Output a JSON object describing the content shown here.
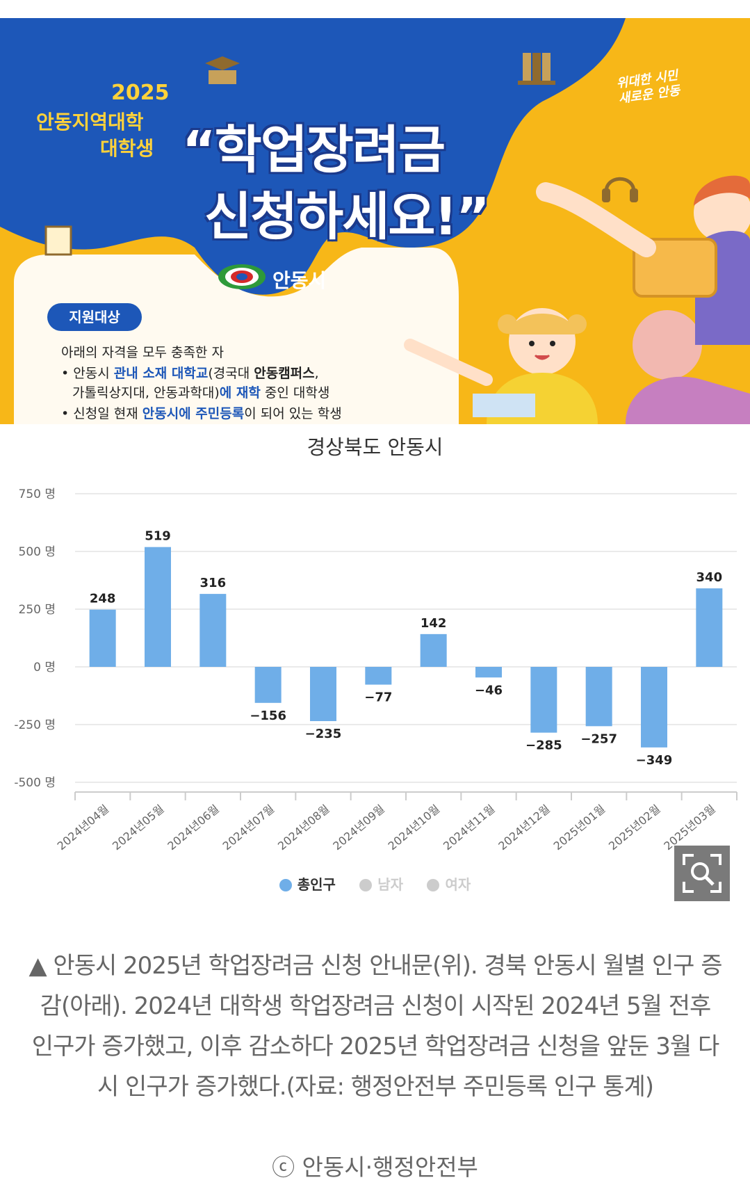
{
  "banner": {
    "year": "2025",
    "line1": "안동지역대학",
    "line2": "대학생",
    "headline1": "“학업장려금",
    "headline2": "신청하세요!”",
    "slogan1": "위대한 시민",
    "slogan2": "새로운 안동",
    "city_name": "안동시",
    "support_label": "지원대상",
    "info_intro": "아래의 자격을 모두 충족한 자",
    "info_b1_a": "• 안동시 ",
    "info_b1_b": "관내 소재 대학교",
    "info_b1_c": "(경국대 ",
    "info_b1_d": "안동캠퍼스",
    "info_b1_e": ",",
    "info_b1_f": "가톨릭상지대, 안동과학대)",
    "info_b1_g": "에 재학",
    "info_b1_h": " 중인 대학생",
    "info_b2_a": "• 신청일 현재 ",
    "info_b2_b": "안동시에 주민등록",
    "info_b2_c": "이 되어 있는 학생",
    "colors": {
      "yellow": "#f7b718",
      "blue": "#1d57b8",
      "cream": "#fffaf0"
    }
  },
  "chart": {
    "title": "경상북도 안동시",
    "y_ticks": [
      "750 명",
      "500 명",
      "250 명",
      "0 명",
      "-250 명",
      "-500 명"
    ],
    "legend": [
      {
        "label": "총인구",
        "color": "#6faee8",
        "active": true
      },
      {
        "label": "남자",
        "color": "#cccccc",
        "active": false
      },
      {
        "label": "여자",
        "color": "#cccccc",
        "active": false
      }
    ],
    "zoom_icon": "zoom-search-icon"
  },
  "chart_data": {
    "type": "bar",
    "title": "경상북도 안동시",
    "categories": [
      "2024년04월",
      "2024년05월",
      "2024년06월",
      "2024년07월",
      "2024년08월",
      "2024년09월",
      "2024년10월",
      "2024년11월",
      "2024년12월",
      "2025년01월",
      "2025년02월",
      "2025년03월"
    ],
    "series": [
      {
        "name": "총인구",
        "values": [
          248,
          519,
          316,
          -156,
          -235,
          -77,
          142,
          -46,
          -285,
          -257,
          -349,
          340
        ]
      }
    ],
    "ylim": [
      -500,
      750
    ],
    "y_tick_values": [
      750,
      500,
      250,
      0,
      -250,
      -500
    ],
    "y_unit": "명",
    "grid": true,
    "legend_position": "bottom",
    "bar_color": "#6faee8"
  },
  "caption": {
    "text": "▲ 안동시 2025년 학업장려금 신청 안내문(위). 경북 안동시 월별 인구 증감(아래). 2024년 대학생 학업장려금 신청이 시작된 2024년 5월 전후 인구가 증가했고, 이후 감소하다 2025년 학업장려금 신청을 앞둔 3월 다시 인구가 증가했다.(자료: 행정안전부 주민등록 인구 통계)",
    "credit": "ⓒ 안동시·행정안전부"
  }
}
